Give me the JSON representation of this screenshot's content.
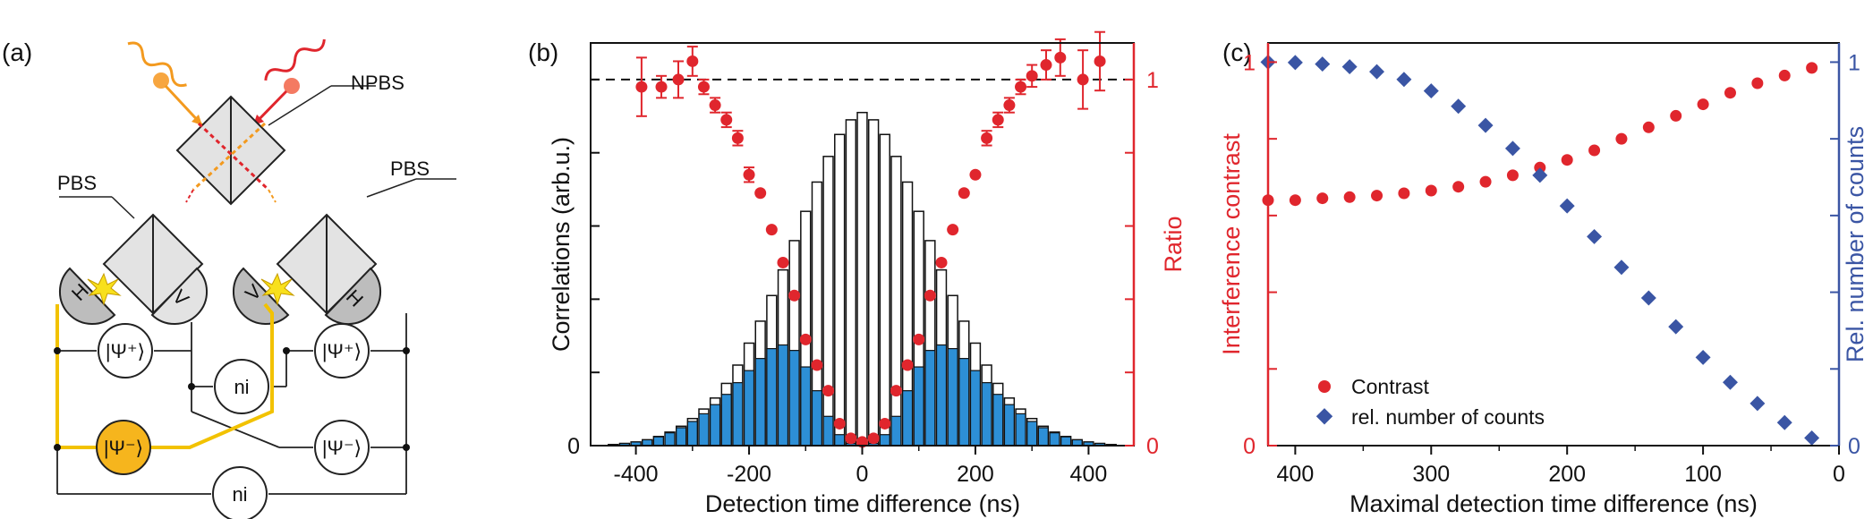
{
  "panels": {
    "a": {
      "label": "(a)",
      "labels": {
        "npbs": "NPBS",
        "pbs_left": "PBS",
        "pbs_right": "PBS",
        "h1": "H",
        "v1": "V",
        "v2": "V",
        "h2": "H",
        "psi_plus_left": "|Ψ⁺⟩",
        "psi_plus_right": "|Ψ⁺⟩",
        "ni_top": "ni",
        "psi_minus_left": "|Ψ⁻⟩",
        "psi_minus_right": "|Ψ⁻⟩",
        "ni_bottom": "ni"
      },
      "colors": {
        "photon_orange": "#f39a1f",
        "photon_red": "#e0262d",
        "highlight": "#f2c200",
        "psi_minus_fill": "#f6b51d"
      }
    },
    "b": {
      "label": "(b)"
    },
    "c": {
      "label": "(c)"
    }
  },
  "chart_data": [
    {
      "id": "b",
      "type": "bar",
      "xlabel": "Detection time difference (ns)",
      "ylabel": "Correlations (arb.u.)",
      "y2label": "Ratio",
      "xlim": [
        -480,
        480
      ],
      "ylim": [
        0,
        1.1
      ],
      "y2lim": [
        0,
        1.1
      ],
      "xticks": [
        -400,
        -200,
        0,
        200,
        400
      ],
      "y2ticks": [
        0,
        1
      ],
      "ref_line": 1,
      "bin_width": 20,
      "colors": {
        "total": "#ffffff",
        "coincidence": "#2d8fd6",
        "ratio": "#e0262d",
        "axis_right": "#e0262d"
      },
      "series": [
        {
          "x": [
            -440,
            -420,
            -400,
            -380,
            -360,
            -340,
            -320,
            -300,
            -280,
            -260,
            -240,
            -220,
            -200,
            -180,
            -160,
            -140,
            -120,
            -100,
            -80,
            -60,
            -40,
            -20,
            0,
            20,
            40,
            60,
            80,
            100,
            120,
            140,
            160,
            180,
            200,
            220,
            240,
            260,
            280,
            300,
            320,
            340,
            360,
            380,
            400,
            420,
            440
          ],
          "values": [
            0.003,
            0.006,
            0.01,
            0.016,
            0.025,
            0.037,
            0.053,
            0.074,
            0.1,
            0.13,
            0.17,
            0.22,
            0.28,
            0.34,
            0.41,
            0.48,
            0.56,
            0.64,
            0.72,
            0.79,
            0.85,
            0.89,
            0.91,
            0.89,
            0.85,
            0.79,
            0.72,
            0.64,
            0.56,
            0.48,
            0.41,
            0.34,
            0.28,
            0.22,
            0.17,
            0.13,
            0.1,
            0.074,
            0.053,
            0.037,
            0.025,
            0.016,
            0.01,
            0.006,
            0.003
          ]
        },
        {
          "x": [
            -440,
            -420,
            -400,
            -380,
            -360,
            -340,
            -320,
            -300,
            -280,
            -260,
            -240,
            -220,
            -200,
            -180,
            -160,
            -140,
            -120,
            -100,
            -80,
            -60,
            -40,
            -20,
            0,
            20,
            40,
            60,
            80,
            100,
            120,
            140,
            160,
            180,
            200,
            220,
            240,
            260,
            280,
            300,
            320,
            340,
            360,
            380,
            400,
            420,
            440
          ],
          "values": [
            0.003,
            0.006,
            0.01,
            0.016,
            0.024,
            0.035,
            0.049,
            0.066,
            0.087,
            0.112,
            0.14,
            0.172,
            0.205,
            0.238,
            0.265,
            0.275,
            0.26,
            0.215,
            0.15,
            0.08,
            0.03,
            0.006,
            0.002,
            0.006,
            0.03,
            0.08,
            0.15,
            0.215,
            0.26,
            0.275,
            0.265,
            0.238,
            0.205,
            0.172,
            0.14,
            0.112,
            0.087,
            0.066,
            0.049,
            0.035,
            0.024,
            0.016,
            0.01,
            0.006,
            0.003
          ]
        },
        {
          "x": [
            -390,
            -355,
            -325,
            -300,
            -280,
            -260,
            -240,
            -220,
            -200,
            -180,
            -160,
            -140,
            -120,
            -100,
            -80,
            -60,
            -40,
            -20,
            0,
            20,
            40,
            60,
            80,
            100,
            120,
            140,
            160,
            180,
            200,
            220,
            240,
            260,
            280,
            300,
            325,
            350,
            390,
            420
          ],
          "values": [
            0.98,
            0.98,
            1.0,
            1.05,
            0.98,
            0.93,
            0.89,
            0.84,
            0.74,
            0.69,
            0.59,
            0.5,
            0.41,
            0.29,
            0.22,
            0.15,
            0.06,
            0.02,
            0.01,
            0.02,
            0.06,
            0.15,
            0.22,
            0.29,
            0.41,
            0.5,
            0.59,
            0.69,
            0.74,
            0.84,
            0.89,
            0.93,
            0.98,
            1.01,
            1.04,
            1.06,
            1.0,
            1.05
          ],
          "errors": [
            0.08,
            0.03,
            0.05,
            0.04,
            0.02,
            0.02,
            0.02,
            0.02,
            0.02,
            0.01,
            0.01,
            0.01,
            0.01,
            0.01,
            0.01,
            0.01,
            0.01,
            0.01,
            0.01,
            0.01,
            0.01,
            0.01,
            0.01,
            0.01,
            0.01,
            0.01,
            0.01,
            0.01,
            0.01,
            0.02,
            0.02,
            0.02,
            0.02,
            0.03,
            0.04,
            0.05,
            0.08,
            0.08
          ]
        }
      ]
    },
    {
      "id": "c",
      "type": "scatter",
      "xlabel": "Maximal detection time difference (ns)",
      "ylabel": "Interference contrast",
      "y2label": "Rel. number of counts",
      "xlim": [
        420,
        0
      ],
      "ylim": [
        0,
        1.05
      ],
      "y2lim": [
        0,
        1.05
      ],
      "xticks": [
        400,
        300,
        200,
        100,
        0
      ],
      "yticks": [
        0,
        1
      ],
      "y2ticks": [
        0,
        1
      ],
      "colors": {
        "contrast": "#e0262d",
        "counts": "#3a55a4"
      },
      "legend": {
        "position": "bottom-left"
      },
      "series": [
        {
          "name": "Contrast",
          "x": [
            420,
            400,
            380,
            360,
            340,
            320,
            300,
            280,
            260,
            240,
            220,
            200,
            180,
            160,
            140,
            120,
            100,
            80,
            60,
            40,
            20
          ],
          "values": [
            0.64,
            0.64,
            0.645,
            0.648,
            0.652,
            0.658,
            0.665,
            0.675,
            0.688,
            0.705,
            0.725,
            0.745,
            0.77,
            0.8,
            0.83,
            0.86,
            0.89,
            0.92,
            0.945,
            0.965,
            0.985
          ]
        },
        {
          "name": "rel. number of counts",
          "x": [
            420,
            400,
            380,
            360,
            340,
            320,
            300,
            280,
            260,
            240,
            220,
            200,
            180,
            160,
            140,
            120,
            100,
            80,
            60,
            40,
            20
          ],
          "values": [
            1.0,
            0.999,
            0.995,
            0.988,
            0.975,
            0.955,
            0.925,
            0.885,
            0.835,
            0.775,
            0.705,
            0.625,
            0.545,
            0.465,
            0.385,
            0.31,
            0.23,
            0.165,
            0.11,
            0.06,
            0.02
          ]
        }
      ]
    }
  ]
}
